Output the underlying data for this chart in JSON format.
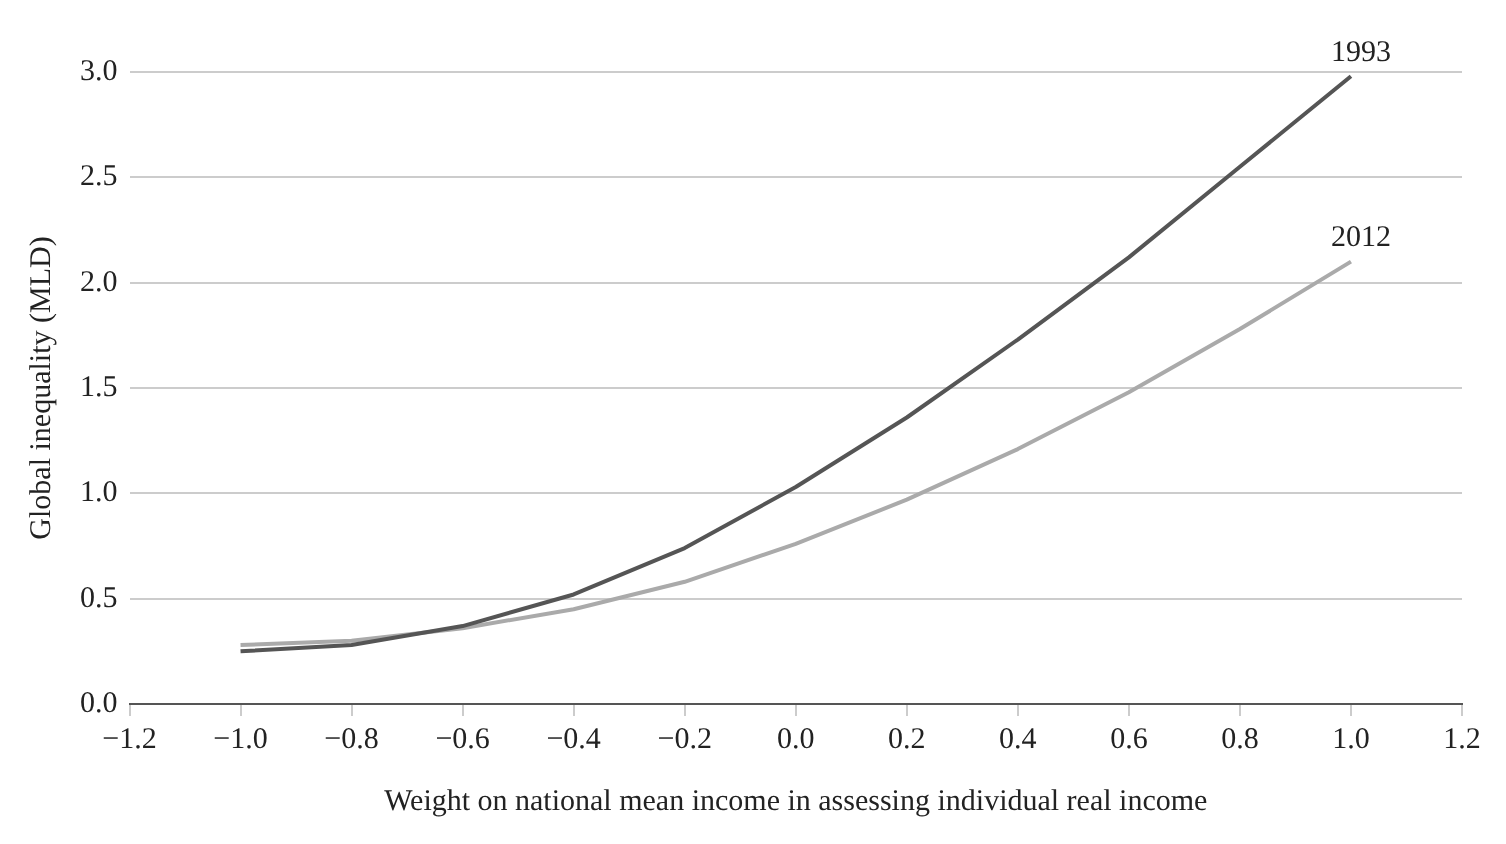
{
  "chart_data": {
    "type": "line",
    "xlabel": "Weight on national mean income in assessing individual real income",
    "ylabel": "Global inequality (MLD)",
    "x": [
      -1.0,
      -0.8,
      -0.6,
      -0.4,
      -0.2,
      0.0,
      0.2,
      0.4,
      0.6,
      0.8,
      1.0
    ],
    "series": [
      {
        "name": "1993",
        "color": "#555555",
        "values": [
          0.25,
          0.28,
          0.37,
          0.52,
          0.74,
          1.03,
          1.36,
          1.73,
          2.12,
          2.55,
          2.98
        ]
      },
      {
        "name": "2012",
        "color": "#aaaaaa",
        "values": [
          0.28,
          0.3,
          0.36,
          0.45,
          0.58,
          0.76,
          0.97,
          1.21,
          1.48,
          1.78,
          2.1
        ]
      }
    ],
    "xlim": [
      -1.2,
      1.2
    ],
    "xticks": [
      {
        "value": -1.2,
        "label": "−1.2"
      },
      {
        "value": -1.0,
        "label": "−1.0"
      },
      {
        "value": -0.8,
        "label": "−0.8"
      },
      {
        "value": -0.6,
        "label": "−0.6"
      },
      {
        "value": -0.4,
        "label": "−0.4"
      },
      {
        "value": -0.2,
        "label": "−0.2"
      },
      {
        "value": 0,
        "label": "0.0"
      },
      {
        "value": 0.2,
        "label": "0.2"
      },
      {
        "value": 0.4,
        "label": "0.4"
      },
      {
        "value": 0.6,
        "label": "0.6"
      },
      {
        "value": 0.8,
        "label": "0.8"
      },
      {
        "value": 1.0,
        "label": "1.0"
      },
      {
        "value": 1.2,
        "label": "1.2"
      }
    ],
    "ylim": [
      0,
      3
    ],
    "yticks": [
      {
        "value": 0,
        "label": "0.0"
      },
      {
        "value": 0.5,
        "label": "0.5"
      },
      {
        "value": 1,
        "label": "1.0"
      },
      {
        "value": 1.5,
        "label": "1.5"
      },
      {
        "value": 2,
        "label": "2.0"
      },
      {
        "value": 2.5,
        "label": "2.5"
      },
      {
        "value": 3,
        "label": "3.0"
      }
    ],
    "grid": "y",
    "legend": false,
    "marker": "none",
    "line_style": "solid"
  }
}
